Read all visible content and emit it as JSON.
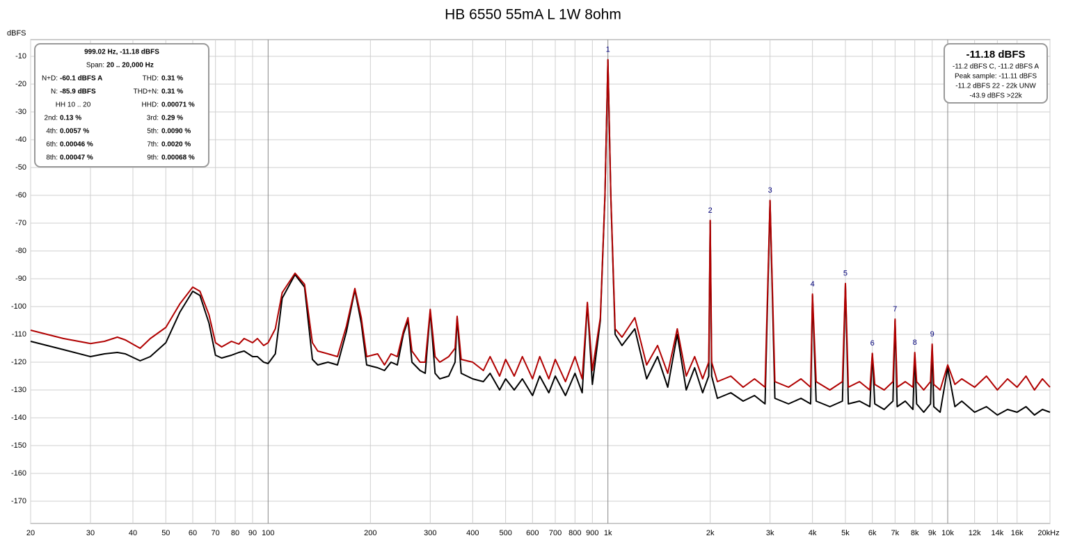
{
  "chart_data": {
    "type": "line",
    "title": "HB 6550 55mA L 1W 8ohm",
    "y_label": "dBFS",
    "xlog": true,
    "grid": true,
    "xlim": [
      20,
      20000
    ],
    "ylim": [
      -178,
      -4
    ],
    "xticks": [
      20,
      30,
      40,
      50,
      60,
      70,
      80,
      90,
      100,
      200,
      300,
      400,
      500,
      600,
      700,
      800,
      900,
      {
        "value": 1000,
        "label": "1k"
      },
      {
        "value": 2000,
        "label": "2k"
      },
      {
        "value": 3000,
        "label": "3k"
      },
      {
        "value": 4000,
        "label": "4k"
      },
      {
        "value": 5000,
        "label": "5k"
      },
      {
        "value": 6000,
        "label": "6k"
      },
      {
        "value": 7000,
        "label": "7k"
      },
      {
        "value": 8000,
        "label": "8k"
      },
      {
        "value": 9000,
        "label": "9k"
      },
      {
        "value": 10000,
        "label": "10k"
      },
      {
        "value": 12000,
        "label": "12k"
      },
      {
        "value": 14000,
        "label": "14k"
      },
      {
        "value": 16000,
        "label": "16k"
      },
      {
        "value": 20000,
        "label": "20kHz"
      }
    ],
    "yticks": [
      -10,
      -20,
      -30,
      -40,
      -50,
      -60,
      -70,
      -80,
      -90,
      -100,
      -110,
      -120,
      -130,
      -140,
      -150,
      -160,
      -170
    ],
    "x": [
      20,
      25,
      30,
      33,
      36,
      38,
      42,
      45,
      50,
      55,
      60,
      63,
      67,
      70,
      73,
      78,
      82,
      85,
      90,
      93,
      97,
      100,
      105,
      110,
      120,
      128,
      135,
      140,
      150,
      160,
      170,
      180,
      188,
      195,
      210,
      220,
      230,
      240,
      250,
      258,
      265,
      280,
      290,
      300,
      310,
      320,
      340,
      355,
      360,
      370,
      400,
      430,
      450,
      480,
      500,
      530,
      560,
      600,
      630,
      670,
      700,
      750,
      800,
      840,
      870,
      900,
      950,
      980,
      1000,
      1020,
      1050,
      1100,
      1200,
      1300,
      1400,
      1500,
      1600,
      1700,
      1800,
      1900,
      1980,
      2000,
      2020,
      2100,
      2300,
      2500,
      2700,
      2900,
      3000,
      3100,
      3400,
      3700,
      3950,
      4000,
      4100,
      4500,
      4900,
      5000,
      5100,
      5500,
      5900,
      6000,
      6100,
      6500,
      6900,
      7000,
      7100,
      7500,
      7900,
      8000,
      8100,
      8500,
      8900,
      9000,
      9100,
      9500,
      10000,
      10500,
      11000,
      12000,
      13000,
      14000,
      15000,
      16000,
      17000,
      18000,
      19000,
      20000
    ],
    "series": [
      {
        "color": "#000000",
        "values": [
          -112.5,
          -115.5,
          -118,
          -117,
          -116.5,
          -117,
          -119.5,
          -118,
          -113,
          -102,
          -94.5,
          -96,
          -106,
          -117.5,
          -118.5,
          -117.5,
          -116.5,
          -116,
          -118,
          -118,
          -120,
          -120.5,
          -117,
          -97,
          -88.5,
          -93,
          -119,
          -121,
          -120,
          -121,
          -109,
          -94,
          -106,
          -121,
          -122,
          -123,
          -120,
          -121,
          -110,
          -105,
          -120,
          -123,
          -124,
          -101.5,
          -124,
          -126,
          -125,
          -120,
          -104,
          -124,
          -126,
          -127,
          -124,
          -130,
          -126,
          -130,
          -126,
          -132,
          -125,
          -131,
          -125,
          -132,
          -124,
          -131,
          -99,
          -128,
          -105,
          -60.5,
          -11.3,
          -60.5,
          -110,
          -114,
          -108,
          -126,
          -118,
          -129,
          -110,
          -130,
          -122,
          -131,
          -125,
          -69.2,
          -125,
          -133,
          -131,
          -134,
          -132,
          -135,
          -62,
          -133,
          -135,
          -133,
          -135,
          -96,
          -134,
          -136,
          -134,
          -92,
          -135,
          -134,
          -136,
          -117,
          -135,
          -137,
          -134,
          -105,
          -136,
          -134,
          -137,
          -117,
          -135,
          -138,
          -135,
          -114,
          -136,
          -138,
          -122,
          -136,
          -134,
          -138,
          -136,
          -139,
          -137,
          -138,
          -136,
          -139,
          -137,
          -138
        ]
      },
      {
        "color": "#b00000",
        "values": [
          -108.5,
          -111.5,
          -113.3,
          -112.5,
          -111,
          -112,
          -115,
          -111.5,
          -107.5,
          -99,
          -93,
          -94.5,
          -103,
          -113,
          -114.5,
          -112.5,
          -113.5,
          -111.5,
          -113,
          -111.5,
          -114,
          -113,
          -108,
          -95,
          -88,
          -92,
          -113,
          -116,
          -117,
          -118,
          -107,
          -93.5,
          -104,
          -118,
          -117,
          -121,
          -117,
          -118,
          -109,
          -104,
          -116,
          -120,
          -120,
          -101,
          -118,
          -120,
          -118,
          -115,
          -103.5,
          -119,
          -120,
          -123,
          -118,
          -125,
          -119,
          -125,
          -118,
          -126,
          -118,
          -126,
          -119,
          -127,
          -118,
          -126,
          -98.5,
          -123,
          -104,
          -60,
          -11.18,
          -60,
          -108,
          -111,
          -104,
          -121,
          -114,
          -124,
          -108,
          -125,
          -118,
          -126,
          -120,
          -69,
          -120,
          -127,
          -125,
          -129,
          -126,
          -129,
          -61.8,
          -127,
          -129,
          -126,
          -129,
          -95.5,
          -127,
          -130,
          -127,
          -91.7,
          -129,
          -127,
          -130,
          -116.8,
          -128,
          -130,
          -127,
          -104.5,
          -129,
          -127,
          -129,
          -116.5,
          -127,
          -130,
          -127,
          -113.5,
          -128,
          -130,
          -121,
          -128,
          -126,
          -129,
          -125,
          -130,
          -126,
          -129,
          -125,
          -130,
          -126,
          -129
        ]
      }
    ],
    "annotations": [
      {
        "text": "1",
        "x": 1000,
        "y": -11.18
      },
      {
        "text": "2",
        "x": 2000,
        "y": -69
      },
      {
        "text": "3",
        "x": 3000,
        "y": -61.8
      },
      {
        "text": "4",
        "x": 4000,
        "y": -95.5
      },
      {
        "text": "5",
        "x": 5000,
        "y": -91.7
      },
      {
        "text": "6",
        "x": 6000,
        "y": -116.8
      },
      {
        "text": "7",
        "x": 7000,
        "y": -104.5
      },
      {
        "text": "8",
        "x": 8000,
        "y": -116.5
      },
      {
        "text": "9",
        "x": 9000,
        "y": -113.5
      }
    ],
    "measurement_box": {
      "heading": "999.02 Hz, -11.18 dBFS",
      "span_label": "Span:",
      "span_value": "20 .. 20,000 Hz",
      "left_items": [
        {
          "label": "N+D:",
          "value": "-60.1 dBFS A"
        },
        {
          "label": "N:",
          "value": "-85.9 dBFS"
        },
        {
          "label": "HH 10 .. 20"
        },
        {
          "label": "2nd:",
          "value": "0.13 %"
        },
        {
          "label": "4th:",
          "value": "0.0057 %"
        },
        {
          "label": "6th:",
          "value": "0.00046 %"
        },
        {
          "label": "8th:",
          "value": "0.00047 %"
        }
      ],
      "right_items": [
        {
          "label": "THD:",
          "value": "0.31 %"
        },
        {
          "label": "THD+N:",
          "value": "0.31 %"
        },
        {
          "label": "HHD:",
          "value": "0.00071 %"
        },
        {
          "label": "3rd:",
          "value": "0.29 %"
        },
        {
          "label": "5th:",
          "value": "0.0090 %"
        },
        {
          "label": "7th:",
          "value": "0.0020 %"
        },
        {
          "label": "9th:",
          "value": "0.00068 %"
        }
      ]
    },
    "level_box": {
      "heading": "-11.18 dBFS",
      "lines": [
        "-11.2 dBFS C, -11.2 dBFS A",
        "Peak sample: -11.11 dBFS",
        "-11.2 dBFS 22 - 22k UNW",
        "-43.9 dBFS >22k"
      ]
    }
  }
}
